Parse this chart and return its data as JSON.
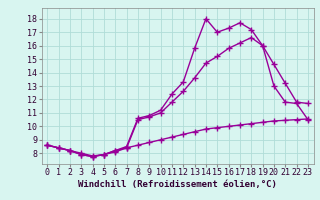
{
  "bg_color": "#d8f5f0",
  "grid_color": "#b0ddd8",
  "line_color": "#990099",
  "line_width": 1.0,
  "marker": "+",
  "marker_size": 4,
  "marker_edge_width": 1.0,
  "xlabel": "Windchill (Refroidissement éolien,°C)",
  "xlabel_fontsize": 6.5,
  "tick_fontsize": 6,
  "xlim": [
    -0.5,
    23.5
  ],
  "ylim": [
    7.2,
    18.8
  ],
  "xticks": [
    0,
    1,
    2,
    3,
    4,
    5,
    6,
    7,
    8,
    9,
    10,
    11,
    12,
    13,
    14,
    15,
    16,
    17,
    18,
    19,
    20,
    21,
    22,
    23
  ],
  "yticks": [
    8,
    9,
    10,
    11,
    12,
    13,
    14,
    15,
    16,
    17,
    18
  ],
  "line1_x": [
    0,
    1,
    2,
    3,
    4,
    5,
    6,
    7,
    8,
    9,
    10,
    11,
    12,
    13,
    14,
    15,
    16,
    17,
    18,
    19,
    20,
    21,
    22,
    23
  ],
  "line1_y": [
    8.6,
    8.4,
    8.2,
    7.9,
    7.75,
    7.9,
    8.2,
    8.5,
    10.6,
    10.8,
    11.2,
    12.4,
    13.3,
    15.8,
    18.0,
    17.0,
    17.3,
    17.7,
    17.2,
    16.0,
    13.0,
    11.8,
    11.7,
    10.5
  ],
  "line2_x": [
    0,
    1,
    2,
    3,
    4,
    5,
    6,
    7,
    8,
    9,
    10,
    11,
    12,
    13,
    14,
    15,
    16,
    17,
    18,
    19,
    20,
    21,
    22,
    23
  ],
  "line2_y": [
    8.6,
    8.4,
    8.2,
    8.0,
    7.8,
    7.9,
    8.2,
    8.4,
    10.5,
    10.7,
    11.0,
    11.8,
    12.6,
    13.6,
    14.7,
    15.2,
    15.8,
    16.2,
    16.6,
    16.0,
    14.6,
    13.2,
    11.8,
    11.7
  ],
  "line3_x": [
    0,
    1,
    2,
    3,
    4,
    5,
    6,
    7,
    8,
    9,
    10,
    11,
    12,
    13,
    14,
    15,
    16,
    17,
    18,
    19,
    20,
    21,
    22,
    23
  ],
  "line3_y": [
    8.6,
    8.4,
    8.2,
    7.9,
    7.75,
    7.9,
    8.1,
    8.4,
    8.6,
    8.8,
    9.0,
    9.2,
    9.4,
    9.6,
    9.8,
    9.9,
    10.0,
    10.1,
    10.2,
    10.3,
    10.4,
    10.45,
    10.5,
    10.55
  ]
}
